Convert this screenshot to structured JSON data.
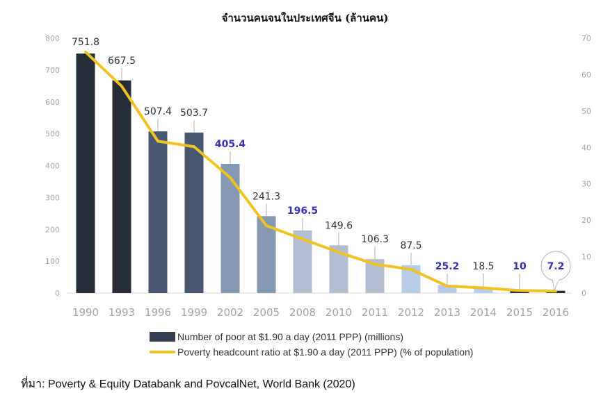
{
  "chart_data": {
    "type": "bar",
    "title": "จำนวนคนจนในประเทศจีน (ล้านคน)",
    "xlabel": "",
    "ylabel": "",
    "categories": [
      "1990",
      "1993",
      "1996",
      "1999",
      "2002",
      "2005",
      "2008",
      "2010",
      "2011",
      "2012",
      "2013",
      "2014",
      "2015",
      "2016"
    ],
    "ylim": [
      0,
      800
    ],
    "y_ticks": [
      "0",
      "100",
      "200",
      "300",
      "400",
      "500",
      "600",
      "700",
      "800"
    ],
    "y2lim": [
      0,
      70
    ],
    "y2_ticks": [
      "0",
      "10",
      "20",
      "30",
      "40",
      "50",
      "60",
      "70"
    ],
    "grid": false,
    "legend_position": "bottom",
    "series": [
      {
        "name": "Number of poor at $1.90 a day (2011 PPP) (millions)",
        "type": "bar",
        "axis": "left",
        "values": [
          751.8,
          667.5,
          507.4,
          503.7,
          405.4,
          241.3,
          196.5,
          149.6,
          106.3,
          87.5,
          25.2,
          18.5,
          10,
          7.2
        ],
        "labels": [
          "751.8",
          "667.5",
          "507.4",
          "503.7",
          "405.4",
          "241.3",
          "196.5",
          "149.6",
          "106.3",
          "87.5",
          "25.2",
          "18.5",
          "10",
          "7.2"
        ],
        "label_colors": [
          "#333333",
          "#333333",
          "#333333",
          "#333333",
          "#3434b0",
          "#333333",
          "#3434b0",
          "#333333",
          "#333333",
          "#333333",
          "#3434b0",
          "#333333",
          "#3434b0",
          "#3434b0"
        ],
        "bar_colors": [
          "#262d38",
          "#262d38",
          "#475870",
          "#475870",
          "#8699b3",
          "#8699b3",
          "#b2bed0",
          "#b2bed0",
          "#b2bed0",
          "#b8cce8",
          "#b8cce8",
          "#b8cce8",
          "#262d38",
          "#262d38"
        ]
      },
      {
        "name": "Poverty headcount ratio at $1.90 a day (2011 PPP) (% of population)",
        "type": "line",
        "axis": "right",
        "color": "#f0c322",
        "values": [
          66.2,
          56.8,
          41.7,
          40.2,
          31.7,
          18.5,
          14.8,
          11.2,
          7.9,
          6.5,
          1.9,
          1.4,
          0.7,
          0.5
        ]
      }
    ],
    "highlight_callout": "2016"
  },
  "source": "ที่มา: Poverty & Equity Databank and PovcalNet, World Bank (2020)"
}
